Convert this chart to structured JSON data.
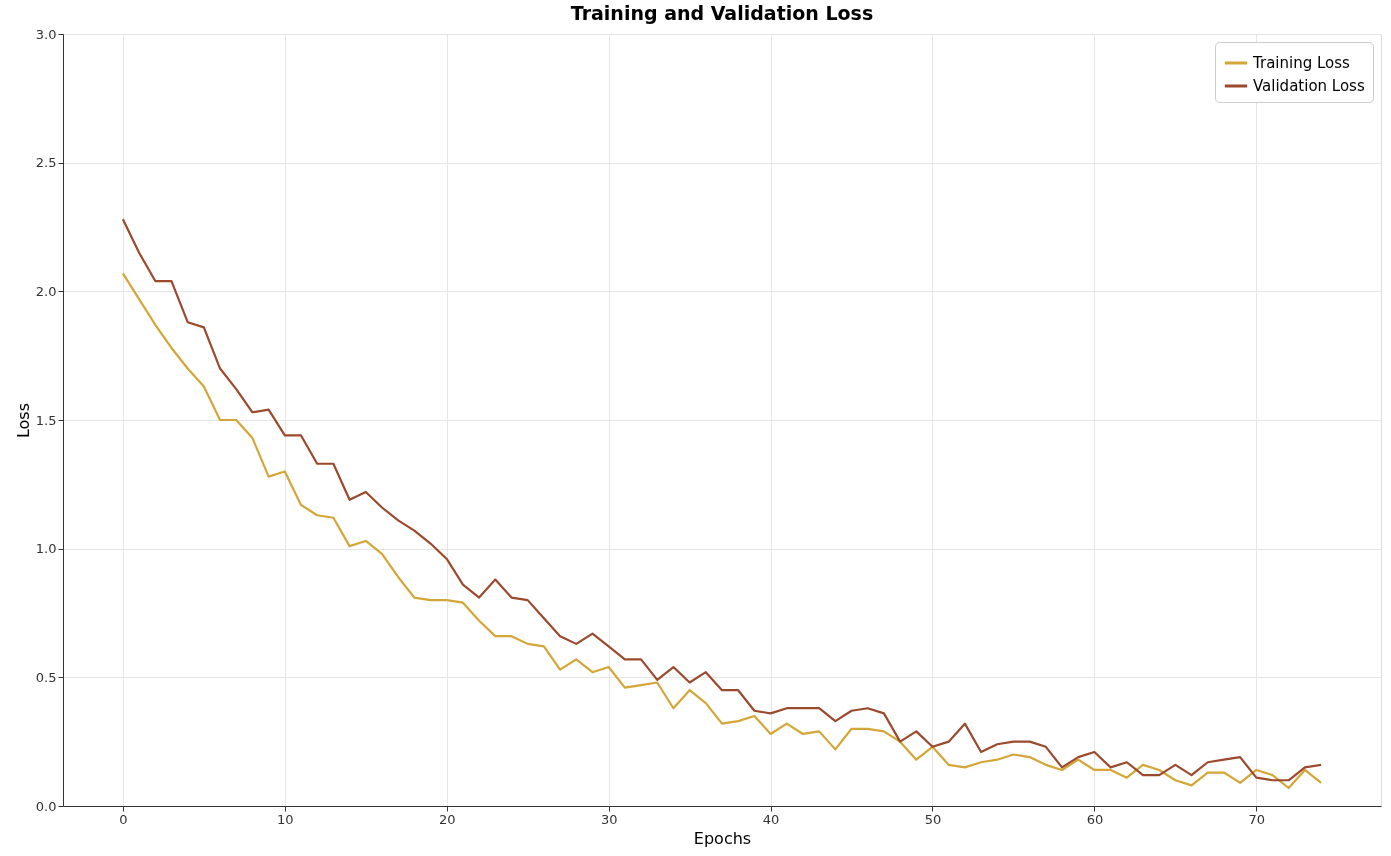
{
  "chart_data": {
    "type": "line",
    "title": "Training and Validation Loss",
    "xlabel": "Epochs",
    "ylabel": "Loss",
    "x": [
      0,
      1,
      2,
      3,
      4,
      5,
      6,
      7,
      8,
      9,
      10,
      11,
      12,
      13,
      14,
      15,
      16,
      17,
      18,
      19,
      20,
      21,
      22,
      23,
      24,
      25,
      26,
      27,
      28,
      29,
      30,
      31,
      32,
      33,
      34,
      35,
      36,
      37,
      38,
      39,
      40,
      41,
      42,
      43,
      44,
      45,
      46,
      47,
      48,
      49,
      50,
      51,
      52,
      53,
      54,
      55,
      56,
      57,
      58,
      59,
      60,
      61,
      62,
      63,
      64,
      65,
      66,
      67,
      68,
      69,
      70,
      71,
      72,
      73,
      74
    ],
    "series": [
      {
        "name": "Training Loss",
        "color": "#d4a637",
        "values": [
          2.07,
          1.97,
          1.87,
          1.78,
          1.7,
          1.63,
          1.5,
          1.5,
          1.43,
          1.28,
          1.3,
          1.17,
          1.13,
          1.12,
          1.01,
          1.03,
          0.98,
          0.89,
          0.81,
          0.8,
          0.8,
          0.79,
          0.72,
          0.66,
          0.66,
          0.63,
          0.62,
          0.53,
          0.57,
          0.52,
          0.54,
          0.46,
          0.47,
          0.48,
          0.38,
          0.45,
          0.4,
          0.32,
          0.33,
          0.35,
          0.28,
          0.32,
          0.28,
          0.29,
          0.22,
          0.3,
          0.3,
          0.29,
          0.25,
          0.18,
          0.23,
          0.16,
          0.15,
          0.17,
          0.18,
          0.2,
          0.19,
          0.16,
          0.14,
          0.18,
          0.14,
          0.14,
          0.11,
          0.16,
          0.14,
          0.1,
          0.08,
          0.13,
          0.13,
          0.09,
          0.14,
          0.12,
          0.07,
          0.14,
          0.09
        ]
      },
      {
        "name": "Validation Loss",
        "color": "#9b4a2e",
        "values": [
          2.28,
          2.15,
          2.04,
          2.04,
          1.88,
          1.86,
          1.7,
          1.62,
          1.53,
          1.54,
          1.44,
          1.44,
          1.33,
          1.33,
          1.19,
          1.22,
          1.16,
          1.11,
          1.07,
          1.02,
          0.96,
          0.86,
          0.81,
          0.88,
          0.81,
          0.8,
          0.73,
          0.66,
          0.63,
          0.67,
          0.62,
          0.57,
          0.57,
          0.49,
          0.54,
          0.48,
          0.52,
          0.45,
          0.45,
          0.37,
          0.36,
          0.38,
          0.38,
          0.38,
          0.33,
          0.37,
          0.38,
          0.36,
          0.25,
          0.29,
          0.23,
          0.25,
          0.32,
          0.21,
          0.24,
          0.25,
          0.25,
          0.23,
          0.15,
          0.19,
          0.21,
          0.15,
          0.17,
          0.12,
          0.12,
          0.16,
          0.12,
          0.17,
          0.18,
          0.19,
          0.11,
          0.1,
          0.1,
          0.15,
          0.16
        ]
      }
    ],
    "xlim": [
      -3.7,
      77.7
    ],
    "xticks": [
      0,
      10,
      20,
      30,
      40,
      50,
      60,
      70
    ],
    "ylim": [
      0,
      3
    ],
    "yticks": [
      {
        "value": 0,
        "label": "0.0"
      },
      {
        "value": 0.5,
        "label": "0.5"
      },
      {
        "value": 1,
        "label": "1.0"
      },
      {
        "value": 1.5,
        "label": "1.5"
      },
      {
        "value": 2,
        "label": "2.0"
      },
      {
        "value": 2.5,
        "label": "2.5"
      },
      {
        "value": 3,
        "label": "3.0"
      }
    ],
    "grid": true,
    "legend": "top right",
    "line_style": "solid",
    "marker": "none"
  }
}
